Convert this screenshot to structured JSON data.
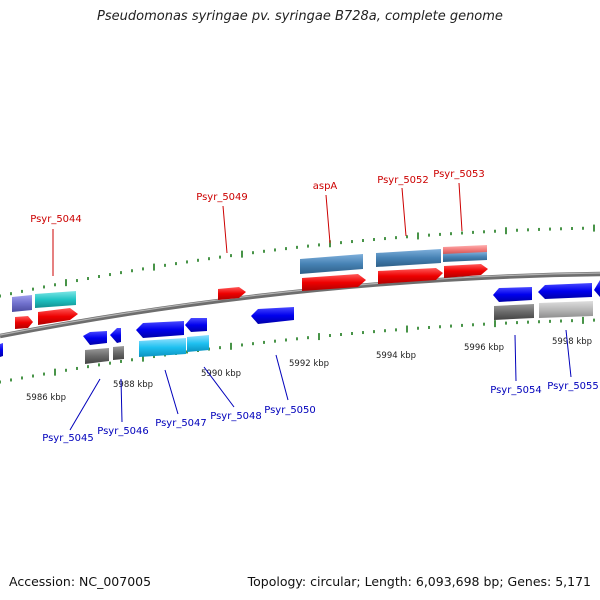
{
  "title": "Pseudomonas syringae pv. syringae B728a, complete genome",
  "footer": {
    "accession": "Accession: NC_007005",
    "stats": "Topology: circular; Length: 6,093,698 bp; Genes: 5,171"
  },
  "colors": {
    "top_label": "#cc0000",
    "bottom_label": "#0000bb",
    "tick": "#1a7a1a",
    "genome_line": "#7a7a7a"
  },
  "scale_labels": [
    "5986 kbp",
    "5988 kbp",
    "5990 kbp",
    "5992 kbp",
    "5994 kbp",
    "5996 kbp",
    "5998 kbp"
  ],
  "gene_labels_top": [
    "Psyr_5044",
    "Psyr_5049",
    "aspA",
    "Psyr_5052",
    "Psyr_5053"
  ],
  "gene_labels_bottom": [
    "Psyr_5045",
    "Psyr_5046",
    "Psyr_5047",
    "Psyr_5048",
    "Psyr_5050",
    "Psyr_5054",
    "Psyr_5055"
  ]
}
